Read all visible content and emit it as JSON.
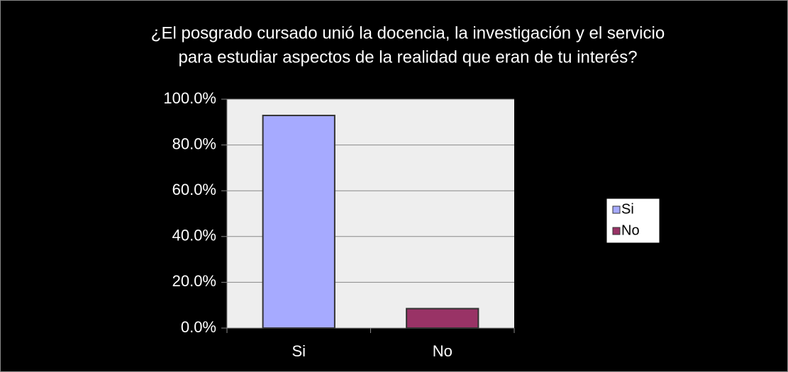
{
  "chart_data": {
    "type": "bar",
    "title": [
      "¿El posgrado cursado unió la docencia, la investigación y el servicio",
      "para estudiar aspectos de la realidad que eran de tu interés?"
    ],
    "categories": [
      "Si",
      "No"
    ],
    "values": [
      92.9,
      8.5
    ],
    "colors": [
      "#a6aaff",
      "#993366"
    ],
    "ylim": [
      0,
      100
    ],
    "yticks": [
      {
        "value": 0,
        "label": "0.0%"
      },
      {
        "value": 20,
        "label": "20.0%"
      },
      {
        "value": 40,
        "label": "40.0%"
      },
      {
        "value": 60,
        "label": "60.0%"
      },
      {
        "value": 80,
        "label": "80.0%"
      },
      {
        "value": 100,
        "label": "100.0%"
      }
    ],
    "grid": true,
    "legend": "right"
  }
}
